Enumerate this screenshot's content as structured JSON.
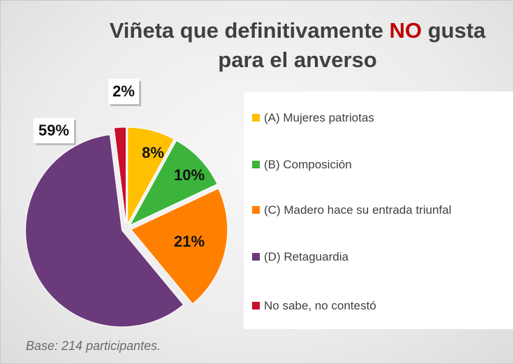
{
  "chart_data": {
    "type": "pie",
    "title": [
      "Viñeta que definitivamente NO gusta",
      "para el anverso"
    ],
    "title_emphasis": "NO",
    "title_emphasis_color": "#c00000",
    "categories": [
      "(A) Mujeres patriotas",
      "(B) Composición",
      "(C) Madero hace su entrada triunfal",
      "(D) Retaguardia",
      "No sabe, no contestó"
    ],
    "values": [
      8,
      10,
      21,
      59,
      2
    ],
    "value_labels": [
      "8%",
      "10%",
      "21%",
      "59%",
      "2%"
    ],
    "colors": [
      "#ffc000",
      "#3cb43c",
      "#ff8000",
      "#6b3a7b",
      "#c8102e"
    ],
    "note": "Base: 214 participantes."
  }
}
